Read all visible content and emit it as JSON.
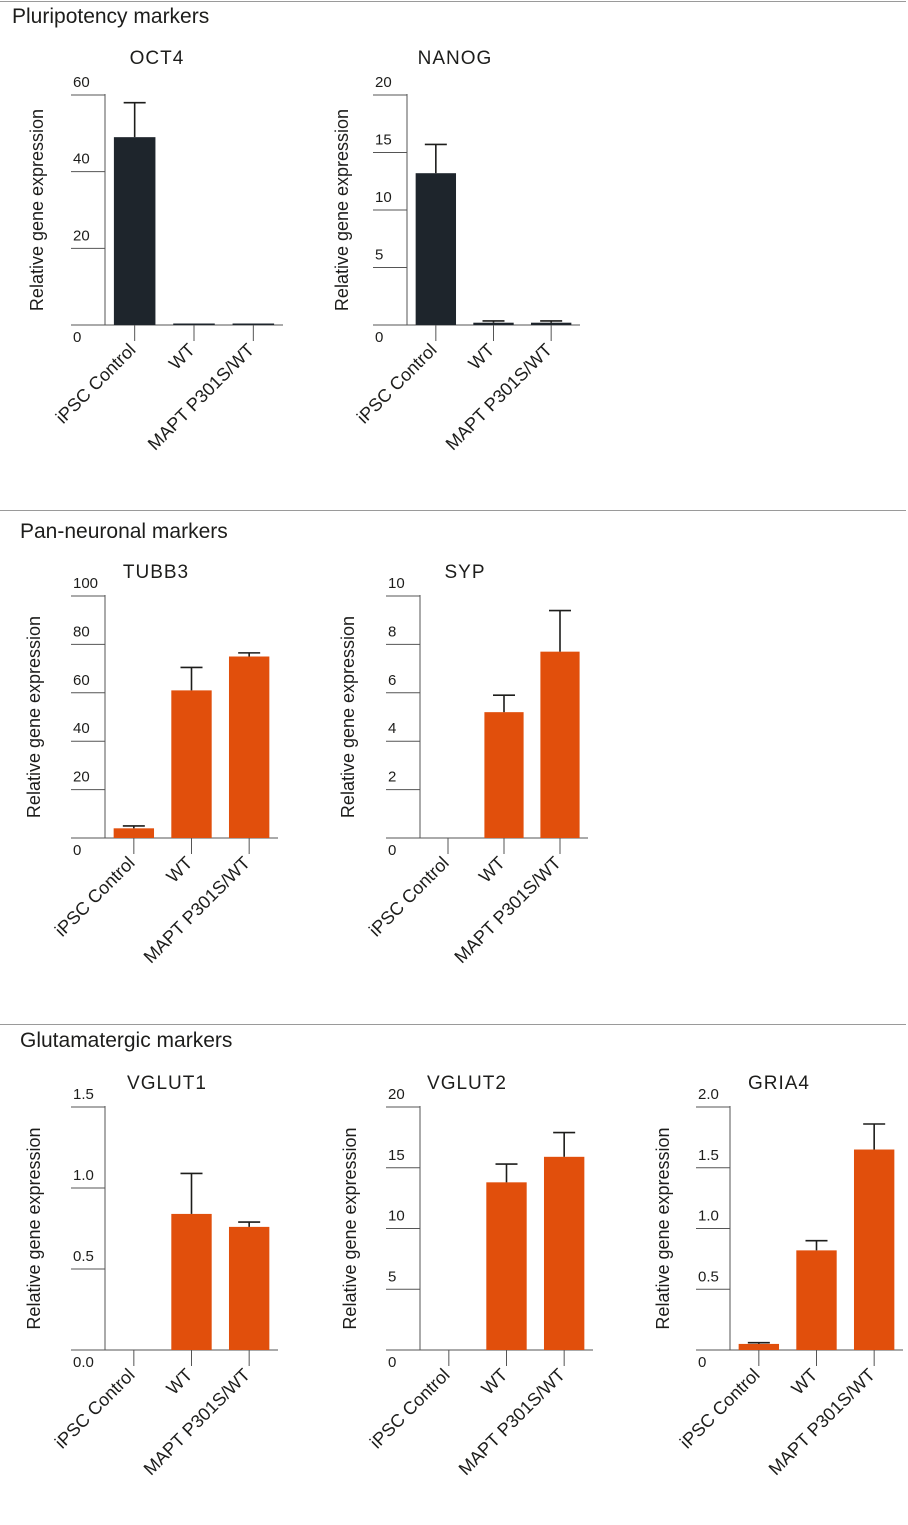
{
  "sections": [
    {
      "title": "Pluripotency markers"
    },
    {
      "title": "Pan-neuronal markers"
    },
    {
      "title": "Glutamatergic markers"
    }
  ],
  "colors": {
    "dark": "#1e252c",
    "orange": "#e14f0c",
    "axis": "#555555",
    "text": "#1d1d1b"
  },
  "chart_data": [
    {
      "type": "bar",
      "title": "OCT4",
      "ylabel": "Relative gene expression",
      "categories": [
        "iPSC Control",
        "WT",
        "MAPT P301S/WT"
      ],
      "values": [
        49,
        0.3,
        0.3
      ],
      "errors": [
        9,
        0,
        0
      ],
      "ylim": [
        0,
        60
      ],
      "yticks": [
        "0",
        "20",
        "40",
        "60"
      ],
      "ytick_values": [
        0,
        20,
        40,
        60
      ],
      "color": "#1e252c"
    },
    {
      "type": "bar",
      "title": "NANOG",
      "ylabel": "Relative gene expression",
      "categories": [
        "iPSC Control",
        "WT",
        "MAPT P301S/WT"
      ],
      "values": [
        13.2,
        0.2,
        0.2
      ],
      "errors": [
        2.5,
        0.15,
        0.15
      ],
      "ylim": [
        0,
        20
      ],
      "yticks": [
        "0",
        "5",
        "10",
        "15",
        "20"
      ],
      "ytick_values": [
        0,
        5,
        10,
        15,
        20
      ],
      "color": "#1e252c"
    },
    {
      "type": "bar",
      "title": "TUBB3",
      "ylabel": "Relative gene expression",
      "categories": [
        "iPSC Control",
        "WT",
        "MAPT P301S/WT"
      ],
      "values": [
        4,
        61,
        75
      ],
      "errors": [
        1,
        9.5,
        1.5
      ],
      "ylim": [
        0,
        100
      ],
      "yticks": [
        "0",
        "20",
        "40",
        "60",
        "80",
        "100"
      ],
      "ytick_values": [
        0,
        20,
        40,
        60,
        80,
        100
      ],
      "color": "#e14f0c"
    },
    {
      "type": "bar",
      "title": "SYP",
      "ylabel": "Relative gene expression",
      "categories": [
        "iPSC Control",
        "WT",
        "MAPT P301S/WT"
      ],
      "values": [
        0,
        5.2,
        7.7
      ],
      "errors": [
        0,
        0.7,
        1.7
      ],
      "ylim": [
        0,
        10
      ],
      "yticks": [
        "0",
        "2",
        "4",
        "6",
        "8",
        "10"
      ],
      "ytick_values": [
        0,
        2,
        4,
        6,
        8,
        10
      ],
      "color": "#e14f0c"
    },
    {
      "type": "bar",
      "title": "VGLUT1",
      "ylabel": "Relative gene expression",
      "categories": [
        "iPSC Control",
        "WT",
        "MAPT P301S/WT"
      ],
      "values": [
        0,
        0.84,
        0.76
      ],
      "errors": [
        0,
        0.25,
        0.03
      ],
      "ylim": [
        0,
        1.5
      ],
      "yticks": [
        "0.0",
        "0.5",
        "1.0",
        "1.5"
      ],
      "ytick_values": [
        0,
        0.5,
        1.0,
        1.5
      ],
      "color": "#e14f0c"
    },
    {
      "type": "bar",
      "title": "VGLUT2",
      "ylabel": "Relative gene expression",
      "categories": [
        "iPSC Control",
        "WT",
        "MAPT P301S/WT"
      ],
      "values": [
        0,
        13.8,
        15.9
      ],
      "errors": [
        0,
        1.5,
        2.0
      ],
      "ylim": [
        0,
        20
      ],
      "yticks": [
        "0",
        "5",
        "10",
        "15",
        "20"
      ],
      "ytick_values": [
        0,
        5,
        10,
        15,
        20
      ],
      "color": "#e14f0c"
    },
    {
      "type": "bar",
      "title": "GRIA4",
      "ylabel": "Relative gene expression",
      "categories": [
        "iPSC Control",
        "WT",
        "MAPT P301S/WT"
      ],
      "values": [
        0.05,
        0.82,
        1.65
      ],
      "errors": [
        0.01,
        0.08,
        0.21
      ],
      "ylim": [
        0,
        2.0
      ],
      "yticks": [
        "0",
        "0.5",
        "1.0",
        "1.5",
        "2.0"
      ],
      "ytick_values": [
        0,
        0.5,
        1.0,
        1.5,
        2.0
      ],
      "color": "#e14f0c"
    }
  ]
}
